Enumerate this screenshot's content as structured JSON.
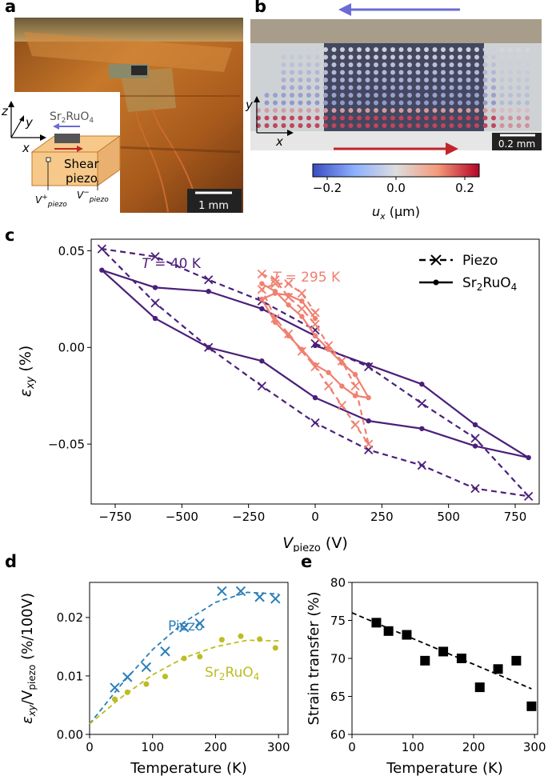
{
  "panels": {
    "a": "a",
    "b": "b",
    "c": "c",
    "d": "d",
    "e": "e"
  },
  "panel_a": {
    "material_label_main": "Sr",
    "material_label_sub": "2",
    "material_label_tail": "RuO",
    "material_label_sub2": "4",
    "axis_z": "z",
    "axis_y": "y",
    "axis_x": "x",
    "piezo_label_line1": "Shear",
    "piezo_label_line2": "piezo",
    "vplus": "V",
    "vplus_sup": "+",
    "vplus_sub": "piezo",
    "vminus": "V",
    "vminus_sup": "−",
    "vminus_sub": "piezo",
    "scalebar": "1 mm",
    "colors": {
      "wood": "#b8691e",
      "piezo_fill": "#f6c98a",
      "arrow_blue": "#6b6bd6",
      "arrow_red": "#c0262b"
    }
  },
  "panel_b": {
    "axis_y": "y",
    "axis_x": "x",
    "scalebar": "0.2 mm",
    "colorbar": {
      "ticks": [
        "−0.2",
        "0.0",
        "0.2"
      ],
      "label_main": "u",
      "label_sub": "x",
      "label_unit": " (μm)",
      "vmin": -0.27,
      "vmax": 0.27,
      "colormap": "coolwarm"
    },
    "colors": {
      "arrow_blue": "#6b6bd6",
      "arrow_red": "#c0262b"
    }
  },
  "chart_data": [
    {
      "id": "c",
      "type": "line",
      "xlabel_main": "V",
      "xlabel_sub": "piezo",
      "xlabel_unit": " (V)",
      "ylabel_main": "ε",
      "ylabel_sub": "xy",
      "ylabel_unit": " (%)",
      "xlim": [
        -840,
        840
      ],
      "ylim": [
        -0.081,
        0.056
      ],
      "xticks": [
        -750,
        -500,
        -250,
        0,
        250,
        500,
        750
      ],
      "xtick_labels": [
        "−750",
        "−500",
        "−250",
        "0",
        "250",
        "500",
        "750"
      ],
      "yticks": [
        -0.05,
        0.0,
        0.05
      ],
      "ytick_labels": [
        "−0.05",
        "0.00",
        "0.05"
      ],
      "legend": {
        "position": "top-right",
        "entries": [
          {
            "label": "Piezo",
            "style": "dashed-x"
          },
          {
            "label_main": "Sr",
            "label_sub": "2",
            "label_tail": "RuO",
            "label_sub2": "4",
            "style": "solid-dot"
          }
        ]
      },
      "annotations": [
        {
          "text_main": "T",
          "text_rest": " = 40 K",
          "color": "#4b1f7a"
        },
        {
          "text_main": "T",
          "text_rest": " = 295 K",
          "color": "#f08070"
        }
      ],
      "series": [
        {
          "name": "Piezo",
          "temperature": "40 K",
          "color": "#4b1f7a",
          "style": "dashed-x",
          "x": [
            0,
            200,
            400,
            600,
            800,
            600,
            400,
            200,
            0,
            -200,
            -400,
            -600,
            -800,
            -600,
            -400,
            -200,
            0
          ],
          "y": [
            0.002,
            -0.01,
            -0.029,
            -0.047,
            -0.077,
            -0.073,
            -0.061,
            -0.053,
            -0.039,
            -0.02,
            0.0,
            0.023,
            0.051,
            0.047,
            0.035,
            0.024,
            0.009
          ]
        },
        {
          "name": "Sr2RuO4",
          "temperature": "40 K",
          "color": "#4b1f7a",
          "style": "solid-dot",
          "x": [
            0,
            200,
            400,
            600,
            800,
            600,
            400,
            200,
            0,
            -200,
            -400,
            -600,
            -800,
            -600,
            -400,
            -200,
            0
          ],
          "y": [
            0.001,
            -0.009,
            -0.019,
            -0.04,
            -0.057,
            -0.051,
            -0.042,
            -0.038,
            -0.026,
            -0.007,
            0.0,
            0.015,
            0.04,
            0.031,
            0.029,
            0.02,
            0.006
          ]
        },
        {
          "name": "Piezo",
          "temperature": "295 K",
          "color": "#f08070",
          "style": "dashed-x",
          "x": [
            -200,
            -150,
            -100,
            -50,
            0,
            50,
            100,
            150,
            200,
            150,
            100,
            50,
            0,
            -50,
            -100,
            -150,
            -200,
            -150,
            -100,
            -50,
            0
          ],
          "y": [
            0.038,
            0.035,
            0.026,
            0.02,
            0.012,
            0.001,
            -0.007,
            -0.02,
            -0.05,
            -0.04,
            -0.03,
            -0.02,
            -0.01,
            -0.002,
            0.007,
            0.015,
            0.03,
            0.033,
            0.033,
            0.028,
            0.018
          ]
        },
        {
          "name": "Sr2RuO4",
          "temperature": "295 K",
          "color": "#f08070",
          "style": "solid-dot",
          "x": [
            -200,
            -150,
            -100,
            -50,
            0,
            50,
            100,
            150,
            200,
            150,
            100,
            50,
            0,
            -50,
            -100,
            -150,
            -200,
            -150,
            -100,
            -50,
            0
          ],
          "y": [
            0.033,
            0.029,
            0.022,
            0.016,
            0.006,
            -0.001,
            -0.008,
            -0.014,
            -0.026,
            -0.025,
            -0.02,
            -0.013,
            -0.009,
            -0.001,
            0.006,
            0.013,
            0.025,
            0.028,
            0.027,
            0.024,
            0.015
          ]
        }
      ]
    },
    {
      "id": "d",
      "type": "scatter",
      "xlabel": "Temperature (K)",
      "ylabel_main": "ε",
      "ylabel_sub": "xy",
      "ylabel_mid": "/V",
      "ylabel_sub2": "piezo",
      "ylabel_unit": " (%/100V)",
      "xlim": [
        0,
        315
      ],
      "ylim": [
        0,
        0.026
      ],
      "xticks": [
        0,
        100,
        200,
        300
      ],
      "xtick_labels": [
        "0",
        "100",
        "200",
        "300"
      ],
      "yticks": [
        0,
        0.01,
        0.02
      ],
      "ytick_labels": [
        "0.00",
        "0.01",
        "0.02"
      ],
      "annotations": [
        {
          "text": "Piezo",
          "color": "#2c7fb8"
        },
        {
          "text_main": "Sr",
          "text_sub": "2",
          "text_tail": "RuO",
          "text_sub2": "4",
          "color": "#bcbd22"
        }
      ],
      "series": [
        {
          "name": "Piezo",
          "color": "#2c7fb8",
          "marker": "x",
          "x": [
            40,
            60,
            90,
            120,
            150,
            175,
            210,
            240,
            270,
            295
          ],
          "y": [
            0.008,
            0.0098,
            0.0115,
            0.0142,
            0.0183,
            0.019,
            0.0245,
            0.0245,
            0.0235,
            0.0232
          ],
          "fit": [
            [
              0,
              0.0018
            ],
            [
              50,
              0.0085
            ],
            [
              100,
              0.0145
            ],
            [
              150,
              0.0192
            ],
            [
              200,
              0.0226
            ],
            [
              250,
              0.0243
            ],
            [
              300,
              0.024
            ]
          ]
        },
        {
          "name": "Sr2RuO4",
          "color": "#bcbd22",
          "marker": "dot",
          "x": [
            40,
            60,
            90,
            120,
            150,
            175,
            210,
            240,
            270,
            295
          ],
          "y": [
            0.006,
            0.0072,
            0.0086,
            0.0099,
            0.013,
            0.0133,
            0.0162,
            0.0168,
            0.0163,
            0.0148
          ],
          "fit": [
            [
              0,
              0.0018
            ],
            [
              50,
              0.0063
            ],
            [
              100,
              0.0102
            ],
            [
              150,
              0.0131
            ],
            [
              200,
              0.015
            ],
            [
              250,
              0.0161
            ],
            [
              300,
              0.016
            ]
          ]
        }
      ]
    },
    {
      "id": "e",
      "type": "scatter",
      "xlabel": "Temperature (K)",
      "ylabel": "Strain transfer (%)",
      "xlim": [
        0,
        305
      ],
      "ylim": [
        60,
        80
      ],
      "xticks": [
        0,
        100,
        200,
        300
      ],
      "xtick_labels": [
        "0",
        "100",
        "200",
        "300"
      ],
      "yticks": [
        60,
        65,
        70,
        75,
        80
      ],
      "ytick_labels": [
        "60",
        "65",
        "70",
        "75",
        "80"
      ],
      "series": [
        {
          "name": "",
          "color": "#000000",
          "marker": "square",
          "x": [
            40,
            60,
            90,
            120,
            150,
            180,
            210,
            240,
            270,
            295
          ],
          "y": [
            74.7,
            73.6,
            73.1,
            69.7,
            70.9,
            70.0,
            66.2,
            68.6,
            69.7,
            63.7
          ],
          "fit": [
            [
              0,
              76.0
            ],
            [
              295,
              66.0
            ]
          ]
        }
      ]
    }
  ]
}
